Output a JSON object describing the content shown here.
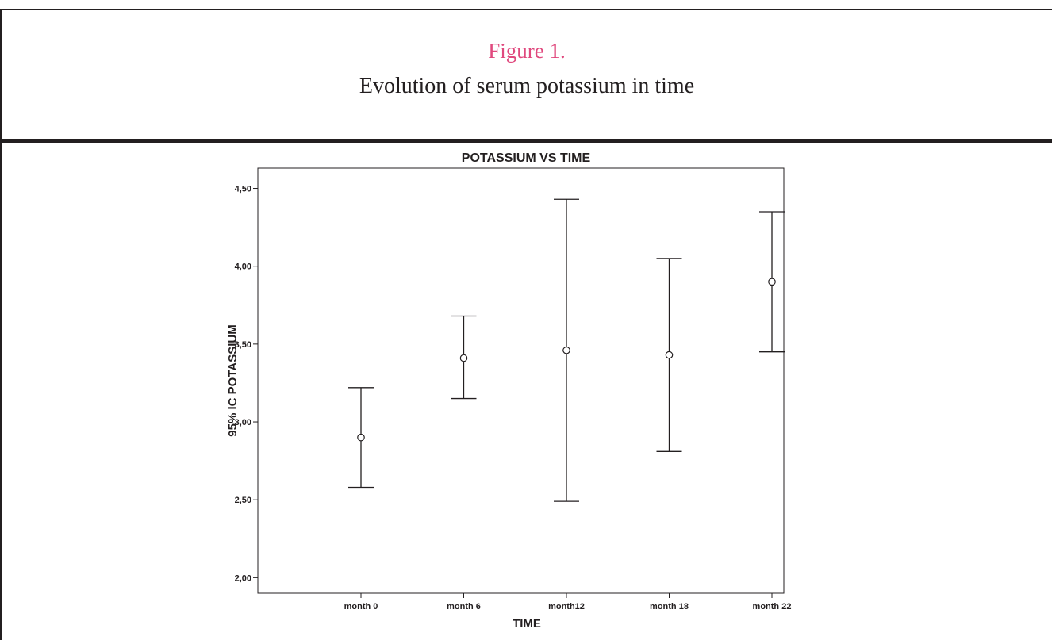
{
  "figure": {
    "label": "Figure 1.",
    "caption": "Evolution of serum potassium in time"
  },
  "colors": {
    "figure_label": "#e0497e",
    "ink": "#231f20"
  },
  "chart_data": {
    "type": "errorbar",
    "title": "POTASSIUM VS TIME",
    "xlabel": "TIME",
    "ylabel": "95% IC POTASSIUM",
    "ylim": [
      1.9,
      4.63
    ],
    "yticks": [
      2.0,
      2.5,
      3.0,
      3.5,
      4.0,
      4.5
    ],
    "ytick_labels": [
      "2,00",
      "2,50",
      "3,00",
      "3,50",
      "4,00",
      "4,50"
    ],
    "categories": [
      "month 0",
      "month 6",
      "month12",
      "month 18",
      "month 22"
    ],
    "series": [
      {
        "mean": [
          2.9,
          3.41,
          3.46,
          3.43,
          3.9
        ],
        "lower": [
          2.58,
          3.15,
          2.49,
          2.81,
          3.45
        ],
        "upper": [
          3.22,
          3.68,
          4.43,
          4.05,
          4.35
        ]
      }
    ],
    "grid": false,
    "legend": "none"
  }
}
